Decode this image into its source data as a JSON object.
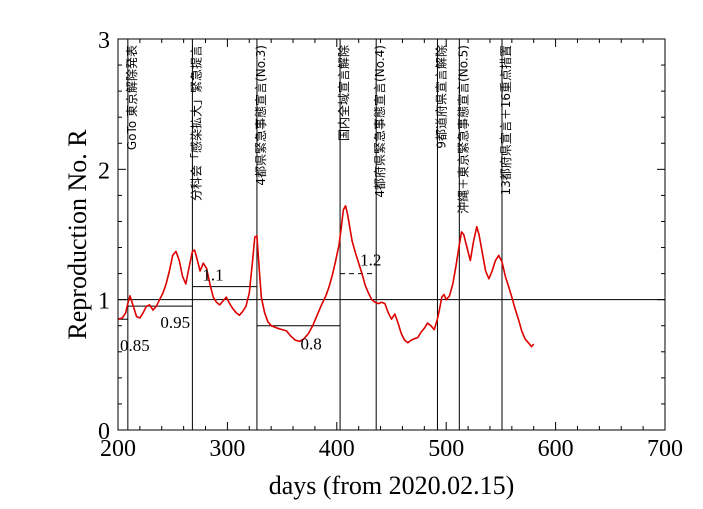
{
  "chart_data": {
    "type": "line",
    "xlabel": "days   (from 2020.02.15)",
    "ylabel": "Reproduction No.  R",
    "xlim": [
      200,
      700
    ],
    "ylim": [
      0,
      3
    ],
    "x_ticks": [
      "200",
      "300",
      "400",
      "500",
      "600",
      "700"
    ],
    "y_ticks": [
      "0",
      "1",
      "2",
      "3"
    ],
    "line_color": "#dd0000",
    "reference_line_y": 1,
    "events": [
      {
        "day": 209,
        "label": "GoTo 東京解除発表"
      },
      {
        "day": 268,
        "label": "分科会「感染拡大」緊急提言"
      },
      {
        "day": 327,
        "label": "4都県緊急事態宣言(No.3)"
      },
      {
        "day": 403,
        "label": "国内全域宣言解除"
      },
      {
        "day": 436,
        "label": "4都府県緊急事態宣言(No.4)"
      },
      {
        "day": 492,
        "label": "9都道府県宣言解除"
      },
      {
        "day": 512,
        "label": "沖縄＋東京緊急事態宣言(No.5)"
      },
      {
        "day": 551,
        "label": "13都府県宣言＋16重点措置"
      }
    ],
    "period_averages": [
      {
        "start": 200,
        "end": 209,
        "value": 0.85,
        "label": "0.85",
        "dashed": false
      },
      {
        "start": 209,
        "end": 268,
        "value": 0.95,
        "label": "0.95",
        "dashed": false
      },
      {
        "start": 268,
        "end": 327,
        "value": 1.1,
        "label": "1.1",
        "dashed": false
      },
      {
        "start": 327,
        "end": 403,
        "value": 0.8,
        "label": "0.8",
        "dashed": false
      },
      {
        "start": 403,
        "end": 436,
        "value": 1.2,
        "label": "1.2",
        "dashed": true
      }
    ],
    "series": [
      {
        "x": [
          200,
          204,
          207,
          209,
          211,
          214,
          217,
          220,
          223,
          226,
          229,
          232,
          235,
          238,
          241,
          244,
          247,
          250,
          253,
          256,
          259,
          262,
          265,
          268,
          270,
          272,
          275,
          278,
          281,
          284,
          287,
          290,
          293,
          296,
          299,
          302,
          305,
          308,
          311,
          314,
          317,
          320,
          323,
          325,
          327,
          329,
          331,
          334,
          337,
          340,
          343,
          346,
          350,
          354,
          358,
          362,
          366,
          370,
          374,
          378,
          382,
          386,
          390,
          393,
          396,
          399,
          402,
          404,
          406,
          408,
          410,
          412,
          414,
          417,
          420,
          423,
          426,
          429,
          432,
          435,
          438,
          441,
          444,
          447,
          450,
          453,
          456,
          459,
          462,
          465,
          468,
          471,
          474,
          477,
          480,
          483,
          486,
          489,
          492,
          494,
          496,
          498,
          500,
          503,
          506,
          509,
          512,
          514,
          516,
          519,
          522,
          525,
          528,
          530,
          533,
          536,
          539,
          542,
          545,
          548,
          551,
          554,
          557,
          560,
          563,
          566,
          569,
          572,
          575,
          578,
          580
        ],
        "y": [
          0.85,
          0.86,
          0.9,
          0.97,
          1.03,
          0.95,
          0.87,
          0.86,
          0.9,
          0.95,
          0.96,
          0.92,
          0.95,
          1.0,
          1.05,
          1.12,
          1.22,
          1.34,
          1.37,
          1.3,
          1.18,
          1.12,
          1.25,
          1.37,
          1.38,
          1.32,
          1.22,
          1.28,
          1.24,
          1.12,
          1.02,
          0.98,
          0.96,
          0.99,
          1.02,
          0.97,
          0.93,
          0.9,
          0.88,
          0.91,
          0.95,
          1.05,
          1.3,
          1.48,
          1.49,
          1.25,
          1.02,
          0.9,
          0.83,
          0.8,
          0.79,
          0.78,
          0.77,
          0.76,
          0.72,
          0.69,
          0.68,
          0.7,
          0.74,
          0.8,
          0.88,
          0.96,
          1.03,
          1.1,
          1.19,
          1.3,
          1.42,
          1.55,
          1.69,
          1.72,
          1.65,
          1.55,
          1.45,
          1.36,
          1.28,
          1.2,
          1.11,
          1.05,
          1.0,
          0.98,
          0.97,
          0.98,
          0.97,
          0.9,
          0.85,
          0.89,
          0.82,
          0.74,
          0.69,
          0.67,
          0.69,
          0.7,
          0.71,
          0.75,
          0.78,
          0.82,
          0.8,
          0.77,
          0.85,
          0.93,
          1.02,
          1.04,
          1.0,
          1.03,
          1.12,
          1.26,
          1.42,
          1.52,
          1.5,
          1.4,
          1.3,
          1.45,
          1.56,
          1.5,
          1.36,
          1.22,
          1.16,
          1.22,
          1.3,
          1.34,
          1.29,
          1.18,
          1.1,
          1.02,
          0.93,
          0.85,
          0.76,
          0.7,
          0.67,
          0.64,
          0.66
        ]
      }
    ]
  }
}
